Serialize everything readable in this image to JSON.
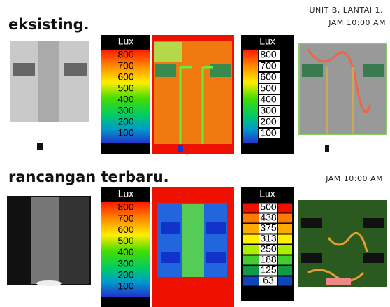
{
  "sections": [
    {
      "title": "eksisting.",
      "caption": [
        "UNIT B, LANTAI 1,",
        "JAM 10:00 AM"
      ],
      "legends": [
        {
          "unit": "Lux",
          "labels": [
            "800",
            "700",
            "600",
            "500",
            "400",
            "300",
            "200",
            "100"
          ]
        },
        {
          "unit": "Lux",
          "labels": [
            "800",
            "700",
            "600",
            "500",
            "400",
            "300",
            "200",
            "100"
          ]
        }
      ]
    },
    {
      "title": "rancangan terbaru.",
      "caption": [
        "JAM 10:00 AM"
      ],
      "legends": [
        {
          "unit": "Lux",
          "labels": [
            "800",
            "700",
            "600",
            "500",
            "400",
            "300",
            "200",
            "100"
          ]
        },
        {
          "unit": "Lux",
          "labels": [
            "500",
            "438",
            "375",
            "313",
            "250",
            "188",
            "125",
            "63"
          ]
        }
      ]
    }
  ]
}
